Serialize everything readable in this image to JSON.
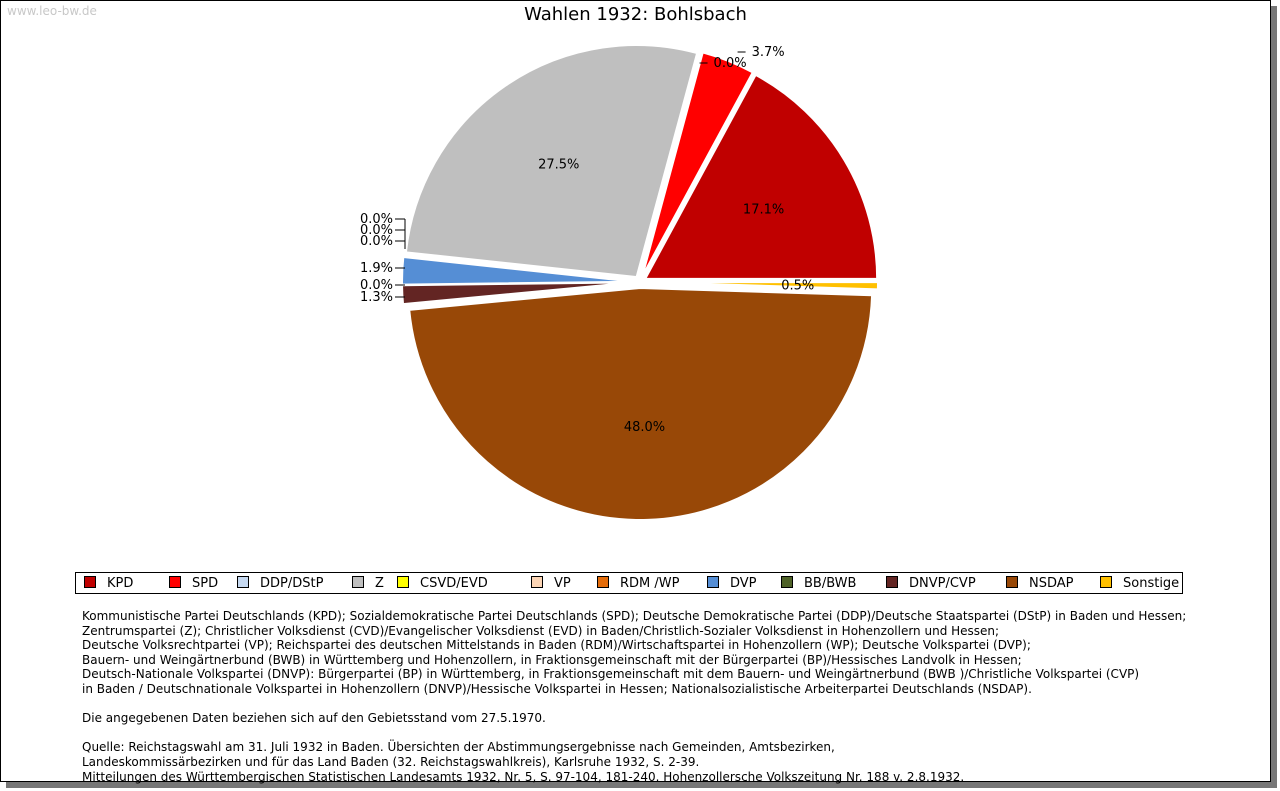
{
  "watermark": "www.leo-bw.de",
  "chart_data": {
    "type": "pie",
    "title": "Wahlen 1932: Bohlsbach",
    "slices": [
      {
        "name": "KPD",
        "value": 17.1,
        "label": "17.1%",
        "color": "#c00000"
      },
      {
        "name": "SPD",
        "value": 3.7,
        "label": "3.7%",
        "color": "#ff0000"
      },
      {
        "name": "DDP/DStP",
        "value": 0.0,
        "label": "0.0%",
        "color": "#c6d9f1"
      },
      {
        "name": "Z",
        "value": 27.5,
        "label": "27.5%",
        "color": "#bfbfbf"
      },
      {
        "name": "CSVD/EVD",
        "value": 0.0,
        "label": "0.0%",
        "color": "#ffff00"
      },
      {
        "name": "VP",
        "value": 0.0,
        "label": "0.0%",
        "color": "#fcd5b5"
      },
      {
        "name": "RDM /WP",
        "value": 0.0,
        "label": "0.0%",
        "color": "#e46c0a"
      },
      {
        "name": "DVP",
        "value": 1.9,
        "label": "1.9%",
        "color": "#558ed5"
      },
      {
        "name": "BB/BWB",
        "value": 0.0,
        "label": "0.0%",
        "color": "#4f6228"
      },
      {
        "name": "DNVP/CVP",
        "value": 1.3,
        "label": "1.3%",
        "color": "#632523"
      },
      {
        "name": "NSDAP",
        "value": 48.0,
        "label": "48.0%",
        "color": "#984807"
      },
      {
        "name": "Sonstige",
        "value": 0.5,
        "label": "0.5%",
        "color": "#ffc000"
      }
    ]
  },
  "notes": [
    "Kommunistische Partei Deutschlands (KPD); Sozialdemokratische Partei Deutschlands (SPD); Deutsche Demokratische Partei (DDP)/Deutsche Staatspartei (DStP) in Baden und Hessen;",
    "Zentrumspartei (Z); Christlicher Volksdienst (CVD)/Evangelischer Volksdienst (EVD) in Baden/Christlich-Sozialer Volksdienst in Hohenzollern und Hessen;",
    "Deutsche Volksrechtpartei (VP); Reichspartei des deutschen Mittelstands in Baden (RDM)/Wirtschaftspartei in Hohenzollern (WP); Deutsche Volkspartei (DVP);",
    "Bauern- und Weingärtnerbund (BWB) in Württemberg und Hohenzollern, in Fraktionsgemeinschaft mit der Bürgerpartei (BP)/Hessisches Landvolk in Hessen;",
    "Deutsch-Nationale Volkspartei (DNVP): Bürgerpartei (BP) in Württemberg, in Fraktionsgemeinschaft mit dem Bauern- und Weingärtnerbund (BWB )/Christliche Volkspartei (CVP)",
    "in Baden / Deutschnationale Volkspartei in Hohenzollern (DNVP)/Hessische Volkspartei in Hessen; Nationalsozialistische Arbeiterpartei Deutschlands (NSDAP).",
    "",
    "Die angegebenen Daten beziehen sich auf den Gebietsstand vom 27.5.1970.",
    "",
    "Quelle: Reichstagswahl am 31. Juli 1932 in Baden. Übersichten der Abstimmungsergebnisse nach Gemeinden, Amtsbezirken,",
    "Landeskommissärbezirken und für das Land Baden (32. Reichstagswahlkreis), Karlsruhe 1932, S. 2-39.",
    "Mitteilungen des Württembergischen Statistischen Landesamts 1932, Nr. 5, S. 97-104, 181-240. Hohenzollersche Volkszeitung Nr. 188 v. 2.8.1932."
  ]
}
